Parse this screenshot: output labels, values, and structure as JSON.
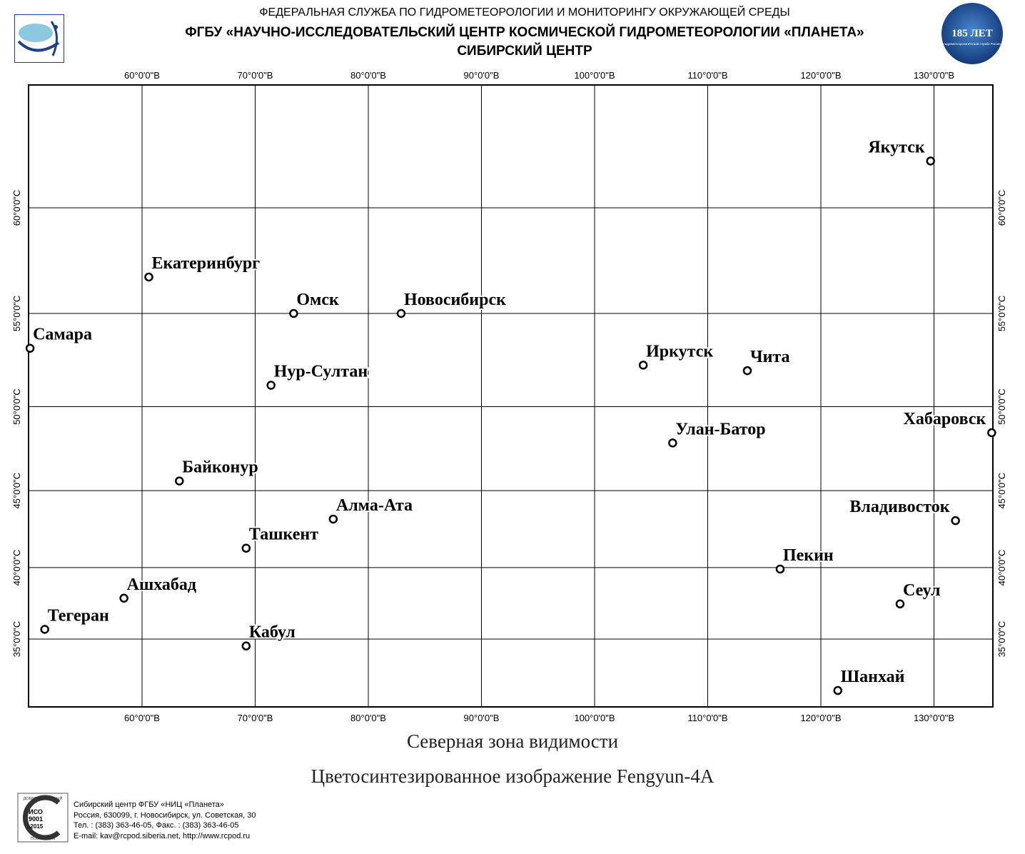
{
  "header": {
    "line1": "ФЕДЕРАЛЬНАЯ СЛУЖБА ПО ГИДРОМЕТЕОРОЛОГИИ И МОНИТОРИНГУ ОКРУЖАЮЩЕЙ СРЕДЫ",
    "line2": "ФГБУ «НАУЧНО-ИССЛЕДОВАТЕЛЬСКИЙ ЦЕНТР КОСМИЧЕСКОЙ ГИДРОМЕТЕОРОЛОГИИ «ПЛАНЕТА»",
    "line3": "СИБИРСКИЙ ЦЕНТР",
    "badge_text": "185 ЛЕТ",
    "badge_subtext": "гидрометеорологической службе России"
  },
  "map": {
    "lon_ticks": [
      60,
      70,
      80,
      90,
      100,
      110,
      120,
      130
    ],
    "lon_label_format": "°0'0\"В",
    "lat_ticks": [
      60,
      55,
      50,
      45,
      40,
      35
    ],
    "lat_label_format": "°0'0\"С",
    "cities": [
      {
        "name": "Якутск",
        "lon": 129.7,
        "lat": 62.0
      },
      {
        "name": "Екатеринбург",
        "lon": 60.6,
        "lat": 56.8
      },
      {
        "name": "Омск",
        "lon": 73.4,
        "lat": 55.0
      },
      {
        "name": "Новосибирск",
        "lon": 82.9,
        "lat": 55.0
      },
      {
        "name": "Самара",
        "lon": 50.1,
        "lat": 53.2
      },
      {
        "name": "Иркутск",
        "lon": 104.3,
        "lat": 52.3
      },
      {
        "name": "Чита",
        "lon": 113.5,
        "lat": 52.0
      },
      {
        "name": "Нур-Султан",
        "lon": 71.4,
        "lat": 51.2
      },
      {
        "name": "Хабаровск",
        "lon": 135.1,
        "lat": 48.5
      },
      {
        "name": "Улан-Батор",
        "lon": 106.9,
        "lat": 47.9
      },
      {
        "name": "Байконур",
        "lon": 63.3,
        "lat": 45.6
      },
      {
        "name": "Алма-Ата",
        "lon": 76.9,
        "lat": 43.2
      },
      {
        "name": "Владивосток",
        "lon": 131.9,
        "lat": 43.1
      },
      {
        "name": "Ташкент",
        "lon": 69.2,
        "lat": 41.3
      },
      {
        "name": "Пекин",
        "lon": 116.4,
        "lat": 39.9
      },
      {
        "name": "Ашхабад",
        "lon": 58.4,
        "lat": 37.9
      },
      {
        "name": "Сеул",
        "lon": 127.0,
        "lat": 37.5
      },
      {
        "name": "Тегеран",
        "lon": 51.4,
        "lat": 35.7
      },
      {
        "name": "Кабул",
        "lon": 69.2,
        "lat": 34.5
      },
      {
        "name": "Шанхай",
        "lon": 121.5,
        "lat": 31.2
      }
    ]
  },
  "captions": {
    "zone": "Северная зона видимости",
    "product": "Цветосинтезированное изображение Fengyun-4A"
  },
  "footer": {
    "cert_top": "ДОБРОСОВЕСТНЫЙ",
    "cert_iso": "ИСО",
    "cert_num": "9001",
    "cert_year": "-2015",
    "cert_bottom": "ПОСТАВЩИК",
    "line1": "Сибирский центр ФГБУ «НИЦ «Планета»",
    "line2": "Россия, 630099, г. Новосибирск, ул. Советская, 30",
    "line3": "Тел. : (383) 363-46-05, Факс. : (383) 363-46-05",
    "line4": "E-mail: kav@rcpod.siberia.net, http://www.rcpod.ru"
  },
  "colors": {
    "grid": "#000000",
    "frame": "#000000",
    "label_fill": "#000000",
    "label_halo": "#ffffff",
    "badge_bg": "#1d4f9c"
  }
}
